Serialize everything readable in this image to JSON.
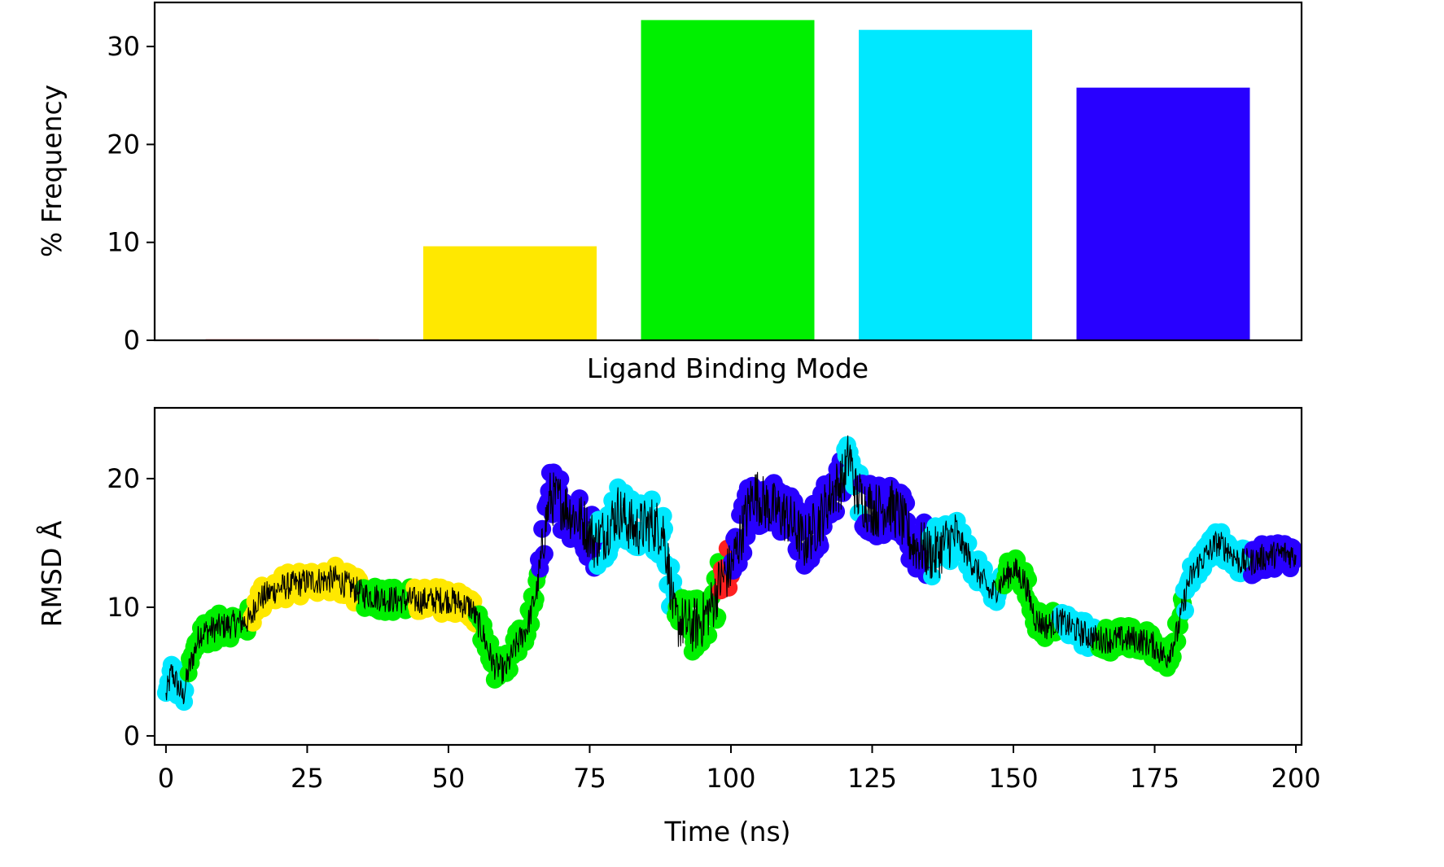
{
  "colors": {
    "red": "#ff2020",
    "yellow": "#ffe800",
    "green": "#00f000",
    "cyan": "#00e8ff",
    "blue": "#2800ff",
    "trace": "#000000"
  },
  "chart_data": [
    {
      "type": "bar",
      "xlabel": "Ligand Binding Mode",
      "ylabel": "% Frequency",
      "ylim": [
        0,
        34.5
      ],
      "yticks": [
        0,
        10,
        20,
        30
      ],
      "xticks_shown": false,
      "grid": false,
      "categories": [
        "",
        "",
        "",
        "",
        ""
      ],
      "bar_colors": [
        "#ff2020",
        "#ffe800",
        "#00f000",
        "#00e8ff",
        "#2800ff"
      ],
      "values": [
        0.1,
        9.6,
        32.7,
        31.7,
        25.8
      ]
    },
    {
      "type": "scatter",
      "xlabel": "Time (ns)",
      "ylabel": "RMSD Å",
      "xlim": [
        -2,
        201
      ],
      "ylim": [
        -0.7,
        25.5
      ],
      "xticks": [
        0,
        25,
        50,
        75,
        100,
        125,
        150,
        175,
        200
      ],
      "yticks": [
        0,
        10,
        20
      ],
      "grid": false,
      "overlay_line": "black RMSD trace over time",
      "segments": [
        {
          "t": [
            0,
            4
          ],
          "color": "#00e8ff"
        },
        {
          "t": [
            4,
            15
          ],
          "color": "#00f000"
        },
        {
          "t": [
            15,
            35
          ],
          "color": "#ffe800"
        },
        {
          "t": [
            35,
            44
          ],
          "color": "#00f000"
        },
        {
          "t": [
            44,
            55
          ],
          "color": "#ffe800"
        },
        {
          "t": [
            55,
            66
          ],
          "color": "#00f000"
        },
        {
          "t": [
            66,
            76
          ],
          "color": "#2800ff"
        },
        {
          "t": [
            76,
            90
          ],
          "color": "#00e8ff"
        },
        {
          "t": [
            90,
            98
          ],
          "color": "#00f000"
        },
        {
          "t": [
            98,
            100
          ],
          "color": "#ff2020"
        },
        {
          "t": [
            100,
            120
          ],
          "color": "#2800ff"
        },
        {
          "t": [
            120,
            123
          ],
          "color": "#00e8ff"
        },
        {
          "t": [
            123,
            135
          ],
          "color": "#2800ff"
        },
        {
          "t": [
            135,
            148
          ],
          "color": "#00e8ff"
        },
        {
          "t": [
            148,
            158
          ],
          "color": "#00f000"
        },
        {
          "t": [
            158,
            165
          ],
          "color": "#00e8ff"
        },
        {
          "t": [
            165,
            180
          ],
          "color": "#00f000"
        },
        {
          "t": [
            180,
            192
          ],
          "color": "#00e8ff"
        },
        {
          "t": [
            192,
            200
          ],
          "color": "#2800ff"
        }
      ],
      "rmsd_keypoints": [
        [
          0,
          3
        ],
        [
          1,
          5
        ],
        [
          2,
          4
        ],
        [
          3,
          3
        ],
        [
          4,
          5
        ],
        [
          5,
          6.5
        ],
        [
          6,
          8
        ],
        [
          10,
          8.5
        ],
        [
          15,
          9
        ],
        [
          16,
          10.5
        ],
        [
          20,
          11.5
        ],
        [
          25,
          12
        ],
        [
          30,
          12.2
        ],
        [
          35,
          11
        ],
        [
          40,
          10.6
        ],
        [
          45,
          10.5
        ],
        [
          50,
          10.6
        ],
        [
          54,
          10
        ],
        [
          56,
          8
        ],
        [
          58,
          5.5
        ],
        [
          60,
          5
        ],
        [
          62,
          7
        ],
        [
          64,
          8.5
        ],
        [
          66,
          12
        ],
        [
          67,
          16
        ],
        [
          68,
          18.5
        ],
        [
          70,
          18.2
        ],
        [
          72,
          17.2
        ],
        [
          74,
          16.5
        ],
        [
          76,
          15
        ],
        [
          78,
          16
        ],
        [
          80,
          17.5
        ],
        [
          83,
          16
        ],
        [
          86,
          16.5
        ],
        [
          88,
          16
        ],
        [
          89,
          13
        ],
        [
          90,
          9
        ],
        [
          93,
          8.5
        ],
        [
          95,
          9
        ],
        [
          97,
          10.5
        ],
        [
          98,
          12
        ],
        [
          100,
          13
        ],
        [
          102,
          16
        ],
        [
          104,
          19
        ],
        [
          106,
          18
        ],
        [
          108,
          17.5
        ],
        [
          110,
          17
        ],
        [
          113,
          15
        ],
        [
          116,
          17
        ],
        [
          118,
          19
        ],
        [
          120,
          20
        ],
        [
          121,
          22
        ],
        [
          122,
          19
        ],
        [
          124,
          18
        ],
        [
          126,
          17.5
        ],
        [
          128,
          18
        ],
        [
          130,
          17
        ],
        [
          132,
          15
        ],
        [
          134,
          14.5
        ],
        [
          136,
          14
        ],
        [
          138,
          15
        ],
        [
          140,
          15.5
        ],
        [
          142,
          14
        ],
        [
          144,
          12.5
        ],
        [
          146,
          11
        ],
        [
          148,
          12
        ],
        [
          150,
          13
        ],
        [
          152,
          12
        ],
        [
          154,
          9
        ],
        [
          156,
          8.5
        ],
        [
          158,
          9
        ],
        [
          160,
          8.5
        ],
        [
          162,
          8
        ],
        [
          165,
          7.5
        ],
        [
          168,
          7.5
        ],
        [
          172,
          7.5
        ],
        [
          175,
          7
        ],
        [
          177,
          6
        ],
        [
          179,
          8
        ],
        [
          181,
          12
        ],
        [
          183,
          13.5
        ],
        [
          186,
          15
        ],
        [
          188,
          14.5
        ],
        [
          190,
          13.5
        ],
        [
          192,
          13.5
        ],
        [
          195,
          14
        ],
        [
          198,
          14.2
        ],
        [
          200,
          14
        ]
      ]
    }
  ]
}
